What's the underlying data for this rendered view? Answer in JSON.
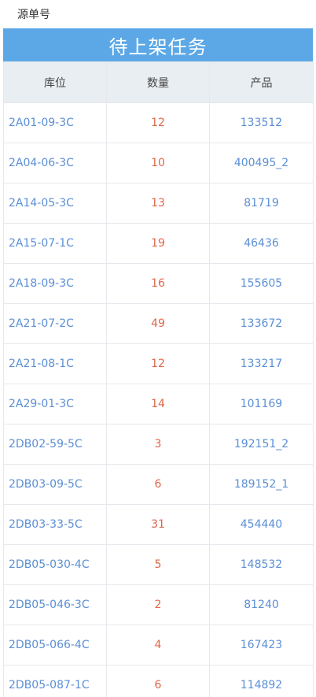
{
  "top": {
    "source_label": "源单号"
  },
  "banner": {
    "title": "待上架任务"
  },
  "table": {
    "headers": [
      "库位",
      "数量",
      "产品"
    ],
    "rows": [
      {
        "location": "2A01-09-3C",
        "qty": "12",
        "product": "133512"
      },
      {
        "location": "2A04-06-3C",
        "qty": "10",
        "product": "400495_2"
      },
      {
        "location": "2A14-05-3C",
        "qty": "13",
        "product": "81719"
      },
      {
        "location": "2A15-07-1C",
        "qty": "19",
        "product": "46436"
      },
      {
        "location": "2A18-09-3C",
        "qty": "16",
        "product": "155605"
      },
      {
        "location": "2A21-07-2C",
        "qty": "49",
        "product": "133672"
      },
      {
        "location": "2A21-08-1C",
        "qty": "12",
        "product": "133217"
      },
      {
        "location": "2A29-01-3C",
        "qty": "14",
        "product": "101169"
      },
      {
        "location": "2DB02-59-5C",
        "qty": "3",
        "product": "192151_2"
      },
      {
        "location": "2DB03-09-5C",
        "qty": "6",
        "product": "189152_1"
      },
      {
        "location": "2DB03-33-5C",
        "qty": "31",
        "product": "454440"
      },
      {
        "location": "2DB05-030-4C",
        "qty": "5",
        "product": "148532"
      },
      {
        "location": "2DB05-046-3C",
        "qty": "2",
        "product": "81240"
      },
      {
        "location": "2DB05-066-4C",
        "qty": "4",
        "product": "167423"
      },
      {
        "location": "2DB05-087-1C",
        "qty": "6",
        "product": "114892"
      }
    ]
  },
  "colors": {
    "banner": "#5ca8e6",
    "header_bg": "#e9eef2",
    "link_blue": "#5b8fd6",
    "qty_red": "#e0654a"
  }
}
